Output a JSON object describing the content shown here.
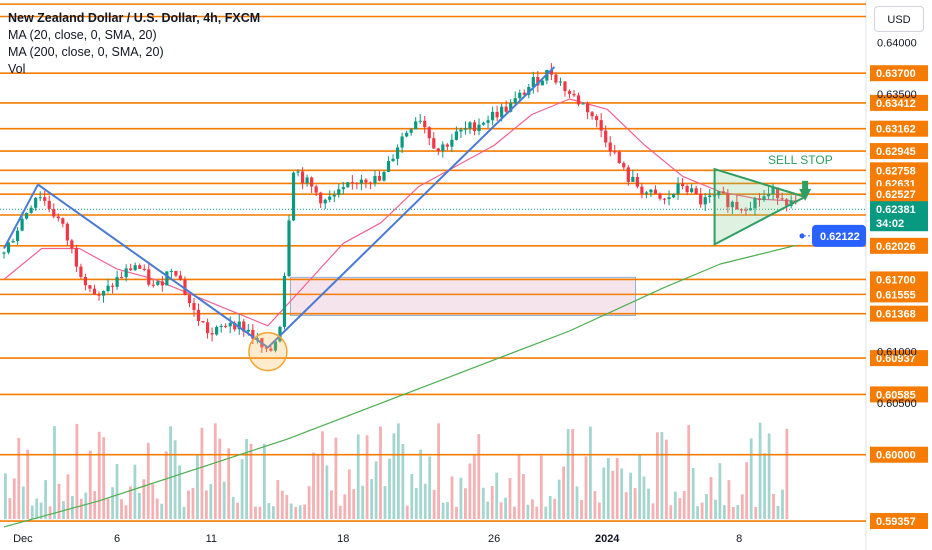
{
  "chart_data": {
    "type": "candlestick",
    "title": "New Zealand Dollar / U.S. Dollar, 4h, FXCM",
    "indicators": [
      "MA (20, close, 0, SMA, 20)",
      "MA (200, close, 0, SMA, 20)",
      "Vol"
    ],
    "currency": "USD",
    "ylim": [
      0.5927,
      0.6441
    ],
    "y_ticks": [
      "0.64000",
      "0.63500",
      "0.61000",
      "0.60500"
    ],
    "x_ticks": [
      {
        "label": "Dec",
        "day": 1
      },
      {
        "label": "6",
        "day": 6
      },
      {
        "label": "11",
        "day": 11
      },
      {
        "label": "18",
        "day": 18
      },
      {
        "label": "26",
        "day": 26
      },
      {
        "label": "2024",
        "day": 32
      },
      {
        "label": "8",
        "day": 39
      }
    ],
    "horizontal_levels": [
      0.6437,
      0.6425,
      0.637,
      0.63412,
      0.63162,
      0.62945,
      0.62758,
      0.62631,
      0.62527,
      0.62325,
      0.62026,
      0.617,
      0.61555,
      0.61368,
      0.60937,
      0.60585,
      0.6,
      0.59357
    ],
    "level_colors": {
      "line": "#f57c00",
      "tag": "#f57c00"
    },
    "current_price": "0.62381",
    "countdown": "34:02",
    "alert_price": "0.62122",
    "annotation": "SELL STOP",
    "price_path": [
      {
        "day": 0,
        "price": 0.6195
      },
      {
        "day": 1,
        "price": 0.623
      },
      {
        "day": 1.8,
        "price": 0.6255
      },
      {
        "day": 3,
        "price": 0.6225
      },
      {
        "day": 4,
        "price": 0.618
      },
      {
        "day": 5,
        "price": 0.615
      },
      {
        "day": 6,
        "price": 0.617
      },
      {
        "day": 7,
        "price": 0.6185
      },
      {
        "day": 8,
        "price": 0.616
      },
      {
        "day": 9,
        "price": 0.6185
      },
      {
        "day": 10,
        "price": 0.614
      },
      {
        "day": 11,
        "price": 0.6115
      },
      {
        "day": 12,
        "price": 0.613
      },
      {
        "day": 13,
        "price": 0.612
      },
      {
        "day": 14,
        "price": 0.6095
      },
      {
        "day": 14.6,
        "price": 0.612
      },
      {
        "day": 15,
        "price": 0.62
      },
      {
        "day": 15.3,
        "price": 0.628
      },
      {
        "day": 16,
        "price": 0.6265
      },
      {
        "day": 17,
        "price": 0.6245
      },
      {
        "day": 18,
        "price": 0.6255
      },
      {
        "day": 19,
        "price": 0.627
      },
      {
        "day": 20,
        "price": 0.6265
      },
      {
        "day": 21,
        "price": 0.6305
      },
      {
        "day": 22,
        "price": 0.633
      },
      {
        "day": 23,
        "price": 0.6295
      },
      {
        "day": 24,
        "price": 0.631
      },
      {
        "day": 25,
        "price": 0.632
      },
      {
        "day": 26,
        "price": 0.633
      },
      {
        "day": 27,
        "price": 0.634
      },
      {
        "day": 28,
        "price": 0.636
      },
      {
        "day": 29,
        "price": 0.6372
      },
      {
        "day": 30,
        "price": 0.635
      },
      {
        "day": 31,
        "price": 0.6335
      },
      {
        "day": 32,
        "price": 0.6305
      },
      {
        "day": 33,
        "price": 0.627
      },
      {
        "day": 34,
        "price": 0.6255
      },
      {
        "day": 35,
        "price": 0.6245
      },
      {
        "day": 36,
        "price": 0.6262
      },
      {
        "day": 37,
        "price": 0.6245
      },
      {
        "day": 38,
        "price": 0.625
      },
      {
        "day": 39,
        "price": 0.624
      },
      {
        "day": 40,
        "price": 0.6248
      },
      {
        "day": 41,
        "price": 0.6255
      },
      {
        "day": 42,
        "price": 0.624
      }
    ],
    "ma20": [
      {
        "day": 0,
        "price": 0.617
      },
      {
        "day": 2,
        "price": 0.62
      },
      {
        "day": 4,
        "price": 0.62
      },
      {
        "day": 6,
        "price": 0.618
      },
      {
        "day": 8,
        "price": 0.617
      },
      {
        "day": 10,
        "price": 0.6155
      },
      {
        "day": 12,
        "price": 0.614
      },
      {
        "day": 14,
        "price": 0.6125
      },
      {
        "day": 16,
        "price": 0.6165
      },
      {
        "day": 18,
        "price": 0.6205
      },
      {
        "day": 20,
        "price": 0.6225
      },
      {
        "day": 22,
        "price": 0.626
      },
      {
        "day": 24,
        "price": 0.628
      },
      {
        "day": 26,
        "price": 0.63
      },
      {
        "day": 28,
        "price": 0.633
      },
      {
        "day": 30,
        "price": 0.6345
      },
      {
        "day": 32,
        "price": 0.6335
      },
      {
        "day": 34,
        "price": 0.63
      },
      {
        "day": 36,
        "price": 0.627
      },
      {
        "day": 38,
        "price": 0.6255
      },
      {
        "day": 40,
        "price": 0.6248
      },
      {
        "day": 42,
        "price": 0.6246
      }
    ],
    "ma200": [
      {
        "day": 0,
        "price": 0.593
      },
      {
        "day": 5,
        "price": 0.5955
      },
      {
        "day": 10,
        "price": 0.5985
      },
      {
        "day": 15,
        "price": 0.6015
      },
      {
        "day": 20,
        "price": 0.605
      },
      {
        "day": 25,
        "price": 0.6085
      },
      {
        "day": 30,
        "price": 0.612
      },
      {
        "day": 35,
        "price": 0.6162
      },
      {
        "day": 38,
        "price": 0.6185
      },
      {
        "day": 42,
        "price": 0.6203
      }
    ],
    "trend_lines": [
      {
        "from": {
          "day": 0,
          "price": 0.62
        },
        "to": {
          "day": 1.8,
          "price": 0.6262
        }
      },
      {
        "from": {
          "day": 1.8,
          "price": 0.6262
        },
        "to": {
          "day": 14,
          "price": 0.6104
        }
      },
      {
        "from": {
          "day": 14,
          "price": 0.6104
        },
        "to": {
          "day": 29.2,
          "price": 0.6376
        }
      }
    ],
    "triangle": [
      {
        "day": 37.7,
        "price": 0.6277
      },
      {
        "day": 37.7,
        "price": 0.6204
      },
      {
        "day": 42.5,
        "price": 0.625
      }
    ],
    "sell_arrow": {
      "day": 42.5,
      "price": 0.6252
    },
    "zone": {
      "from_day": 15.2,
      "to_day": 33.5,
      "top": 0.6172,
      "bottom": 0.6135
    },
    "highlight_circle": {
      "day": 14,
      "price": 0.61
    },
    "volume_bars_count": 176
  }
}
